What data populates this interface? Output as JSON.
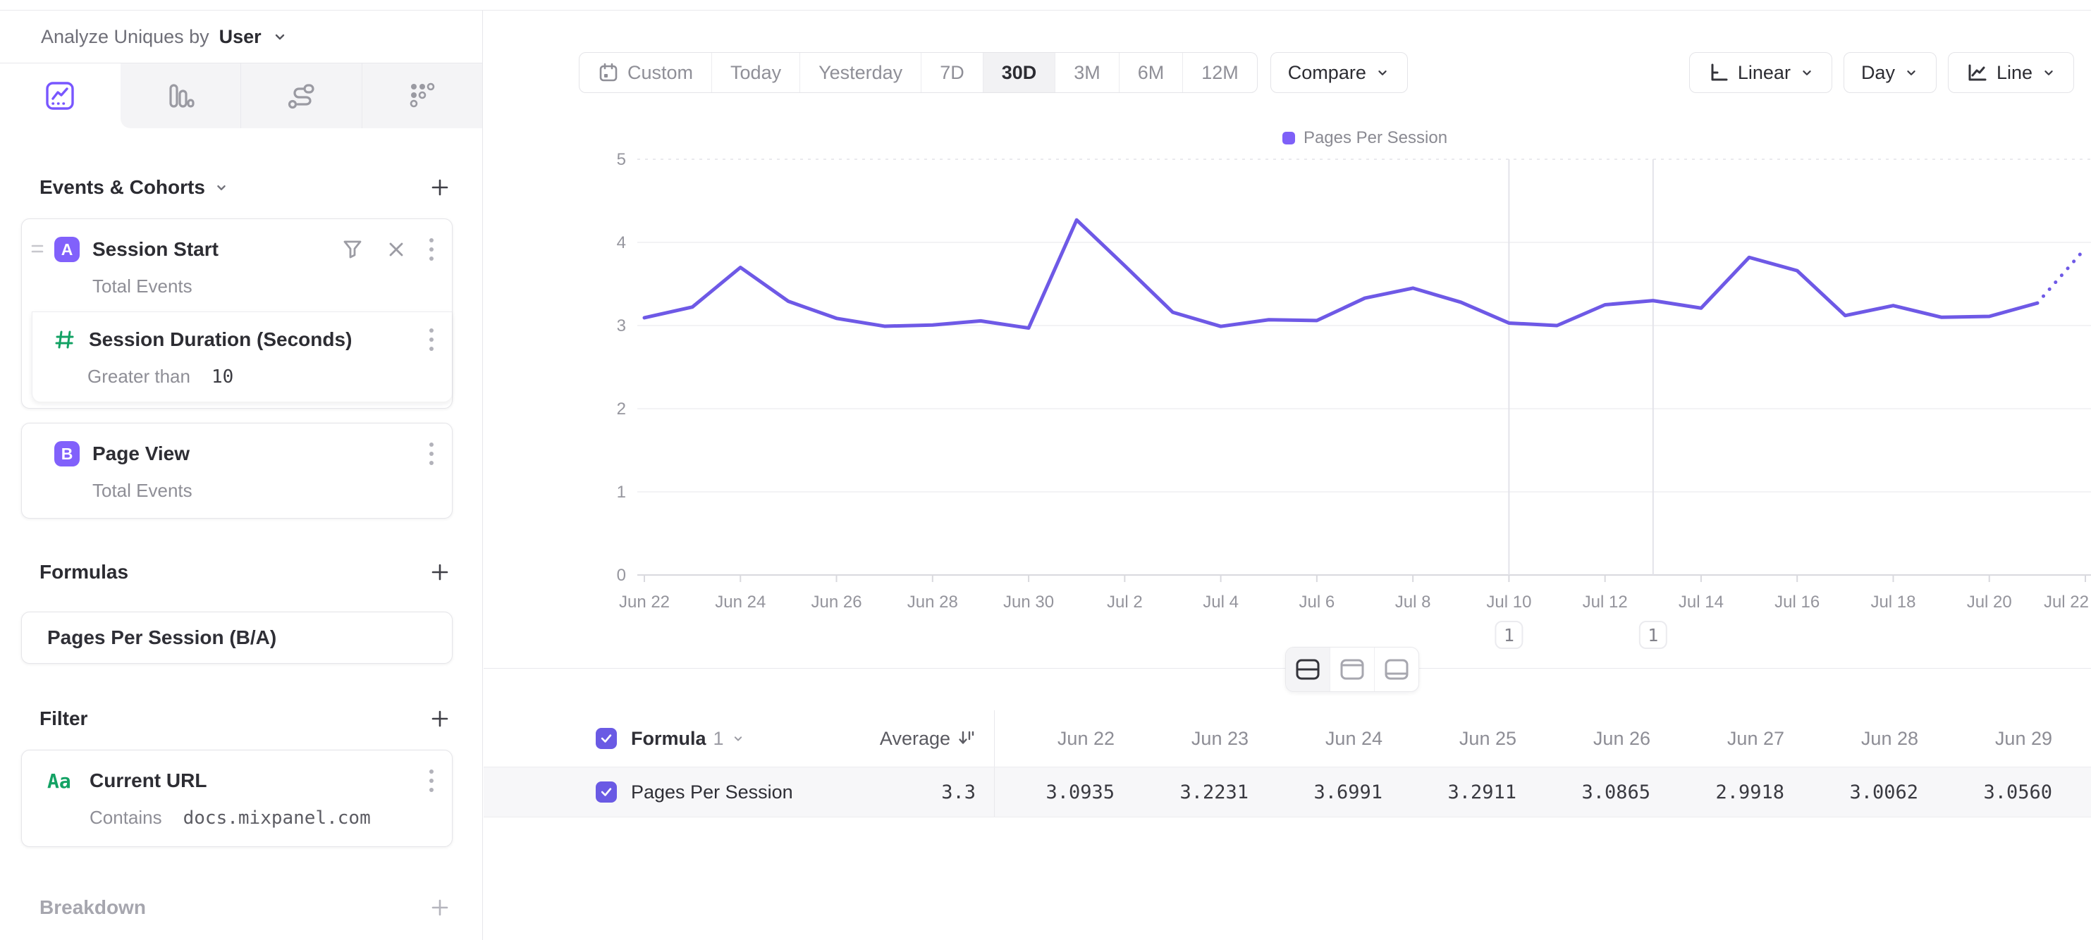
{
  "header": {
    "analyze_label": "Analyze Uniques by",
    "analyze_value": "User"
  },
  "sidebar": {
    "tabs": [
      {
        "name": "insights",
        "selected": true
      },
      {
        "name": "funnels",
        "selected": false
      },
      {
        "name": "flows",
        "selected": false
      },
      {
        "name": "retention",
        "selected": false
      }
    ],
    "events_section": {
      "title": "Events & Cohorts",
      "event_a": {
        "letter": "A",
        "title": "Session Start",
        "subtitle": "Total Events"
      },
      "event_a_property": {
        "title": "Session Duration (Seconds)",
        "operator": "Greater than",
        "value": "10"
      },
      "event_b": {
        "letter": "B",
        "title": "Page View",
        "subtitle": "Total Events"
      }
    },
    "formulas_section": {
      "title": "Formulas",
      "formula": "Pages Per Session (B/A)"
    },
    "filter_section": {
      "title": "Filter",
      "property": "Current URL",
      "icon_text": "Aa",
      "operator": "Contains",
      "value": "docs.mixpanel.com"
    },
    "breakdown_section": {
      "title": "Breakdown"
    }
  },
  "toolbar": {
    "ranges": [
      "Custom",
      "Today",
      "Yesterday",
      "7D",
      "30D",
      "3M",
      "6M",
      "12M"
    ],
    "selected_range": "30D",
    "compare_label": "Compare",
    "scale_label": "Linear",
    "granularity_label": "Day",
    "chart_type_label": "Line"
  },
  "chart_data": {
    "type": "line",
    "title": "",
    "xlabel": "",
    "ylabel": "",
    "ylim": [
      0,
      5
    ],
    "yticks": [
      0,
      1,
      2,
      3,
      4,
      5
    ],
    "grid": true,
    "legend_position": "top-center",
    "x": [
      "Jun 22",
      "Jun 23",
      "Jun 24",
      "Jun 25",
      "Jun 26",
      "Jun 27",
      "Jun 28",
      "Jun 29",
      "Jun 30",
      "Jul 1",
      "Jul 2",
      "Jul 3",
      "Jul 4",
      "Jul 5",
      "Jul 6",
      "Jul 7",
      "Jul 8",
      "Jul 9",
      "Jul 10",
      "Jul 11",
      "Jul 12",
      "Jul 13",
      "Jul 14",
      "Jul 15",
      "Jul 16",
      "Jul 17",
      "Jul 18",
      "Jul 19",
      "Jul 20",
      "Jul 21",
      "Jul 22"
    ],
    "x_tick_step": 2,
    "series": [
      {
        "name": "Pages Per Session",
        "color": "#6e59e6",
        "values": [
          3.0935,
          3.2231,
          3.6991,
          3.2911,
          3.0865,
          2.9918,
          3.0062,
          3.056,
          2.97,
          4.27,
          3.72,
          3.16,
          2.99,
          3.07,
          3.06,
          3.33,
          3.45,
          3.28,
          3.03,
          3.0,
          3.25,
          3.3,
          3.21,
          3.82,
          3.66,
          3.12,
          3.24,
          3.1,
          3.11,
          3.27,
          3.93
        ],
        "dotted_tail_points": 1
      }
    ],
    "annotations": [
      {
        "index": 18,
        "label": "1"
      },
      {
        "index": 21,
        "label": "1"
      }
    ]
  },
  "table": {
    "group_label": "Formula",
    "group_number": "1",
    "average_label": "Average",
    "average_value": "3.3",
    "row_label": "Pages Per Session",
    "columns": [
      "Jun 22",
      "Jun 23",
      "Jun 24",
      "Jun 25",
      "Jun 26",
      "Jun 27",
      "Jun 28",
      "Jun 29"
    ],
    "values": [
      "3.0935",
      "3.2231",
      "3.6991",
      "3.2911",
      "3.0865",
      "2.9918",
      "3.0062",
      "3.0560"
    ]
  }
}
